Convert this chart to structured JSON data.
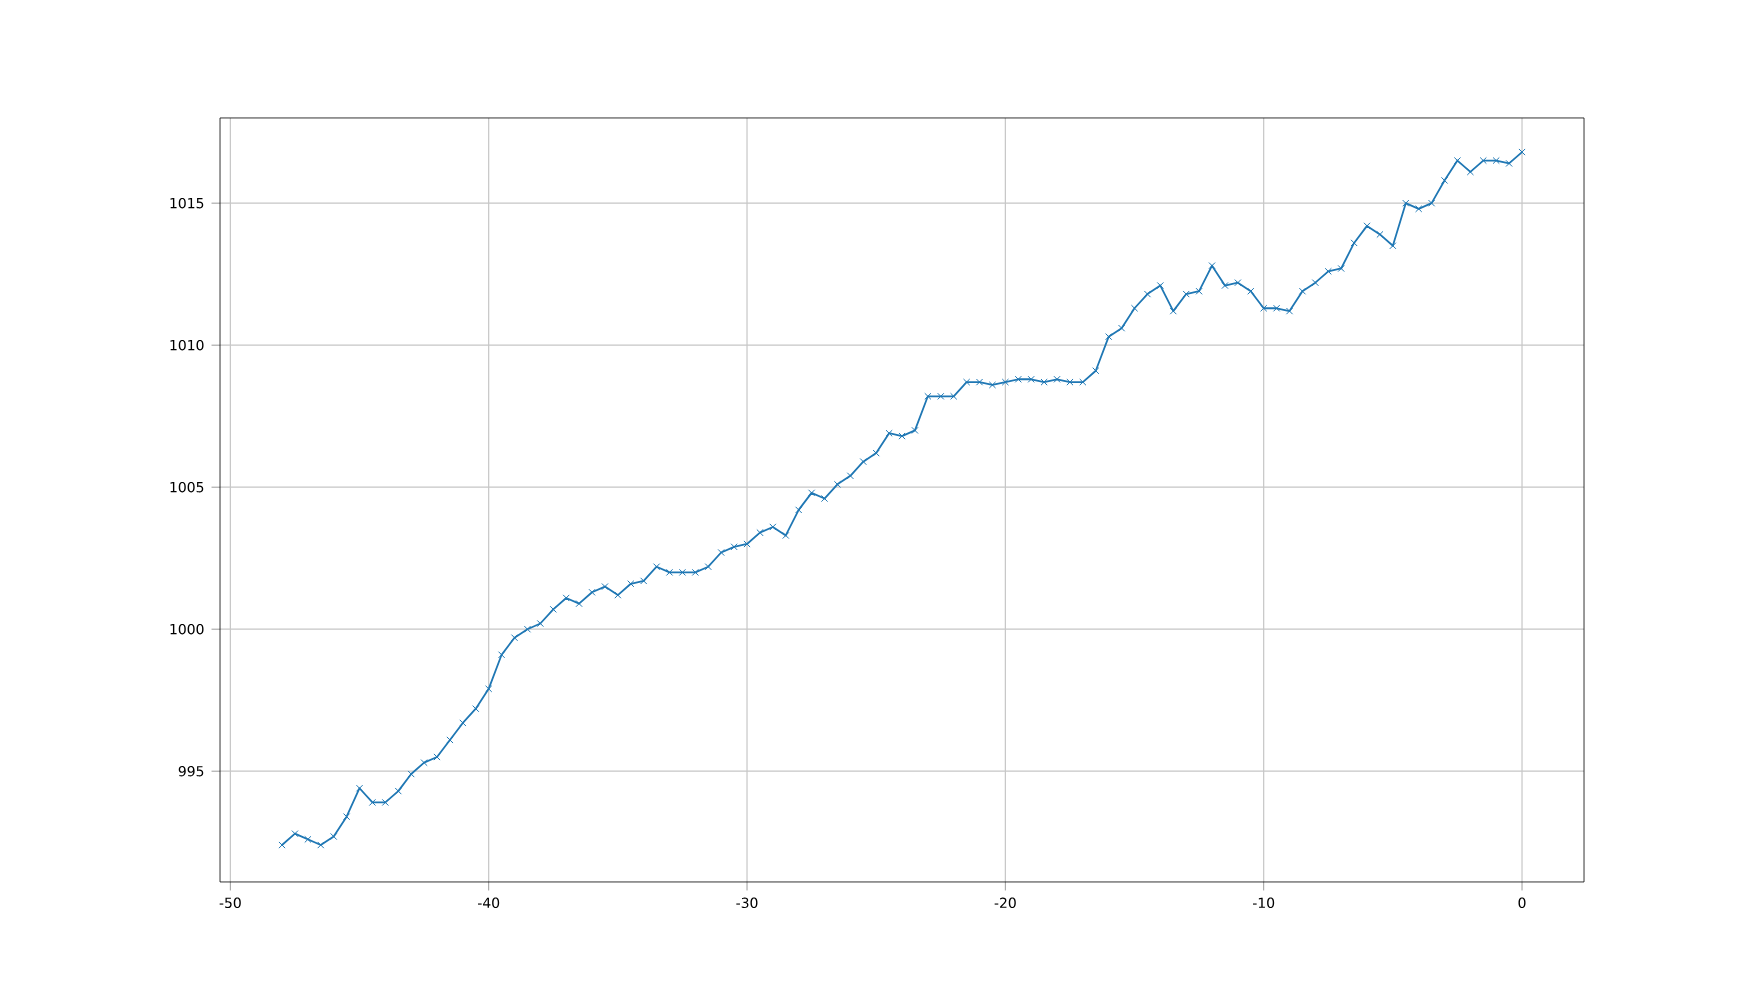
{
  "chart_data": {
    "type": "line",
    "x": [
      -48,
      -47.5,
      -47,
      -46.5,
      -46,
      -45.5,
      -45,
      -44.5,
      -44,
      -43.5,
      -43,
      -42.5,
      -42,
      -41.5,
      -41,
      -40.5,
      -40,
      -39.5,
      -39,
      -38.5,
      -38,
      -37.5,
      -37,
      -36.5,
      -36,
      -35.5,
      -35,
      -34.5,
      -34,
      -33.5,
      -33,
      -32.5,
      -32,
      -31.5,
      -31,
      -30.5,
      -30,
      -29.5,
      -29,
      -28.5,
      -28,
      -27.5,
      -27,
      -26.5,
      -26,
      -25.5,
      -25,
      -24.5,
      -24,
      -23.5,
      -23,
      -22.5,
      -22,
      -21.5,
      -21,
      -20.5,
      -20,
      -19.5,
      -19,
      -18.5,
      -18,
      -17.5,
      -17,
      -16.5,
      -16,
      -15.5,
      -15,
      -14.5,
      -14,
      -13.5,
      -13,
      -12.5,
      -12,
      -11.5,
      -11,
      -10.5,
      -10,
      -9.5,
      -9,
      -8.5,
      -8,
      -7.5,
      -7,
      -6.5,
      -6,
      -5.5,
      -5,
      -4.5,
      -4,
      -3.5,
      -3,
      -2.5,
      -2,
      -1.5,
      -1,
      -0.5,
      0
    ],
    "series": [
      {
        "color": "#1f77b4",
        "values": [
          992.4,
          992.8,
          992.6,
          992.4,
          992.7,
          993.4,
          994.4,
          993.9,
          993.9,
          994.3,
          994.9,
          995.3,
          995.5,
          996.1,
          996.7,
          997.2,
          997.9,
          999.1,
          999.7,
          1000.0,
          1000.2,
          1000.7,
          1001.1,
          1000.9,
          1001.3,
          1001.5,
          1001.2,
          1001.6,
          1001.7,
          1002.2,
          1002.0,
          1002.0,
          1002.0,
          1002.2,
          1002.7,
          1002.9,
          1003.0,
          1003.4,
          1003.6,
          1003.3,
          1004.2,
          1004.8,
          1004.6,
          1005.1,
          1005.4,
          1005.9,
          1006.2,
          1006.9,
          1006.8,
          1007.0,
          1008.2,
          1008.2,
          1008.2,
          1008.7,
          1008.7,
          1008.6,
          1008.7,
          1008.8,
          1008.8,
          1008.7,
          1008.8,
          1008.7,
          1008.7,
          1009.1,
          1010.3,
          1010.6,
          1011.3,
          1011.8,
          1012.1,
          1011.2,
          1011.8,
          1011.9,
          1012.8,
          1012.1,
          1012.2,
          1011.9,
          1011.3,
          1011.3,
          1011.2,
          1011.9,
          1012.2,
          1012.6,
          1012.7,
          1013.6,
          1014.2,
          1013.9,
          1013.5,
          1015.0,
          1014.8,
          1015.0,
          1015.8,
          1016.5,
          1016.1,
          1016.5,
          1016.5,
          1016.4,
          1016.8
        ]
      }
    ],
    "xlim": [
      -50.4,
      2.4
    ],
    "ylim": [
      991.1,
      1018.0
    ],
    "xticks": [
      -50,
      -40,
      -30,
      -20,
      -10,
      0
    ],
    "yticks": [
      995,
      1000,
      1005,
      1010,
      1015
    ],
    "grid": true,
    "marker": "cross",
    "line_style": "solid"
  }
}
